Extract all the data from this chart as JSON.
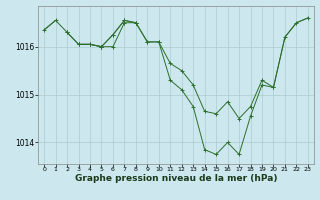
{
  "bg_color": "#cce8ee",
  "grid_color": "#aacccc",
  "line_color": "#2d6e2d",
  "marker_color": "#2d6e2d",
  "xlabel": "Graphe pression niveau de la mer (hPa)",
  "xlabel_fontsize": 6.5,
  "xlim": [
    -0.5,
    23.5
  ],
  "ylim": [
    1013.55,
    1016.85
  ],
  "yticks": [
    1014,
    1015,
    1016
  ],
  "xticks": [
    0,
    1,
    2,
    3,
    4,
    5,
    6,
    7,
    8,
    9,
    10,
    11,
    12,
    13,
    14,
    15,
    16,
    17,
    18,
    19,
    20,
    21,
    22,
    23
  ],
  "series": [
    {
      "x": [
        0,
        1,
        2,
        3,
        4,
        5,
        6,
        7,
        8,
        9,
        10,
        11,
        12,
        13,
        14,
        15,
        16,
        17,
        18,
        19,
        20,
        21,
        22,
        23
      ],
      "y": [
        1016.35,
        1016.55,
        null,
        null,
        null,
        null,
        null,
        null,
        null,
        null,
        null,
        null,
        null,
        null,
        null,
        null,
        null,
        null,
        null,
        null,
        1015.15,
        1016.2,
        1016.5,
        1016.6
      ],
      "has_markers": false
    },
    {
      "x": [
        0,
        1,
        2,
        3,
        4,
        5,
        6,
        7,
        8,
        9,
        10,
        11,
        12,
        13,
        14,
        15,
        16,
        17,
        18,
        19,
        20,
        21,
        22,
        23
      ],
      "y": [
        1016.35,
        1016.55,
        1016.3,
        1016.05,
        1016.05,
        1016.0,
        1016.25,
        1016.55,
        1016.5,
        1016.1,
        1016.1,
        1015.3,
        1015.1,
        1014.75,
        1013.85,
        1013.75,
        1014.0,
        1013.75,
        1014.55,
        1015.2,
        1015.15,
        1016.2,
        1016.5,
        1016.6
      ],
      "has_markers": true
    },
    {
      "x": [
        0,
        1,
        2,
        3,
        4,
        5,
        6,
        7,
        8,
        9,
        10,
        11,
        12,
        13,
        14,
        15,
        16,
        17,
        18,
        19,
        20,
        21,
        22,
        23
      ],
      "y": [
        1016.35,
        null,
        1016.3,
        1016.05,
        1016.05,
        1016.0,
        1016.25,
        1016.55,
        1016.5,
        1016.1,
        1016.1,
        1015.65,
        1015.5,
        1015.2,
        1014.65,
        1014.6,
        1014.85,
        1014.5,
        1014.75,
        1015.3,
        1015.15,
        null,
        null,
        null
      ],
      "has_markers": true
    },
    {
      "x": [
        0,
        1,
        2,
        3,
        4,
        5,
        6,
        7,
        8,
        9,
        10,
        11,
        12,
        13,
        14,
        15,
        16,
        17,
        18,
        19,
        20,
        21,
        22,
        23
      ],
      "y": [
        1016.35,
        null,
        null,
        1016.05,
        1016.05,
        1016.0,
        1016.0,
        1016.5,
        1016.5,
        null,
        null,
        null,
        null,
        null,
        null,
        null,
        null,
        null,
        null,
        null,
        null,
        null,
        null,
        null
      ],
      "has_markers": true
    }
  ]
}
